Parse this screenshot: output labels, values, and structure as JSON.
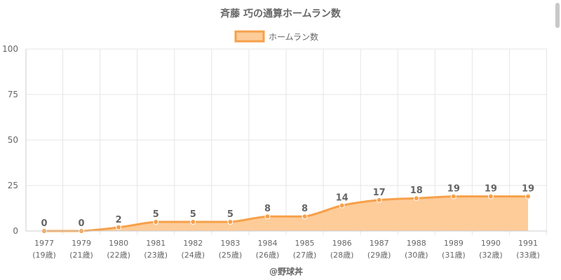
{
  "chart_data": {
    "type": "area",
    "title": "斉藤 巧の通算ホームラン数",
    "categories": [
      "1977",
      "1979",
      "1980",
      "1981",
      "1982",
      "1983",
      "1984",
      "1985",
      "1986",
      "1987",
      "1988",
      "1989",
      "1990",
      "1991"
    ],
    "sublabels": [
      "(19歳)",
      "(21歳)",
      "(22歳)",
      "(23歳)",
      "(24歳)",
      "(25歳)",
      "(26歳)",
      "(27歳)",
      "(28歳)",
      "(29歳)",
      "(30歳)",
      "(31歳)",
      "(32歳)",
      "(33歳)"
    ],
    "series": [
      {
        "name": "ホームラン数",
        "values": [
          0,
          0,
          2,
          5,
          5,
          5,
          8,
          8,
          14,
          17,
          18,
          19,
          19,
          19
        ]
      }
    ],
    "ylim": [
      0,
      100
    ],
    "yticks": [
      0,
      25,
      50,
      75,
      100
    ],
    "grid": true,
    "legend": "top-center",
    "data_labels": true,
    "colors": {
      "line": "#f7a04a",
      "fill": "#fdcc99",
      "grid": "#e6e6e6",
      "text": "#666666",
      "label": "#666666"
    },
    "footer": "@野球丼"
  }
}
